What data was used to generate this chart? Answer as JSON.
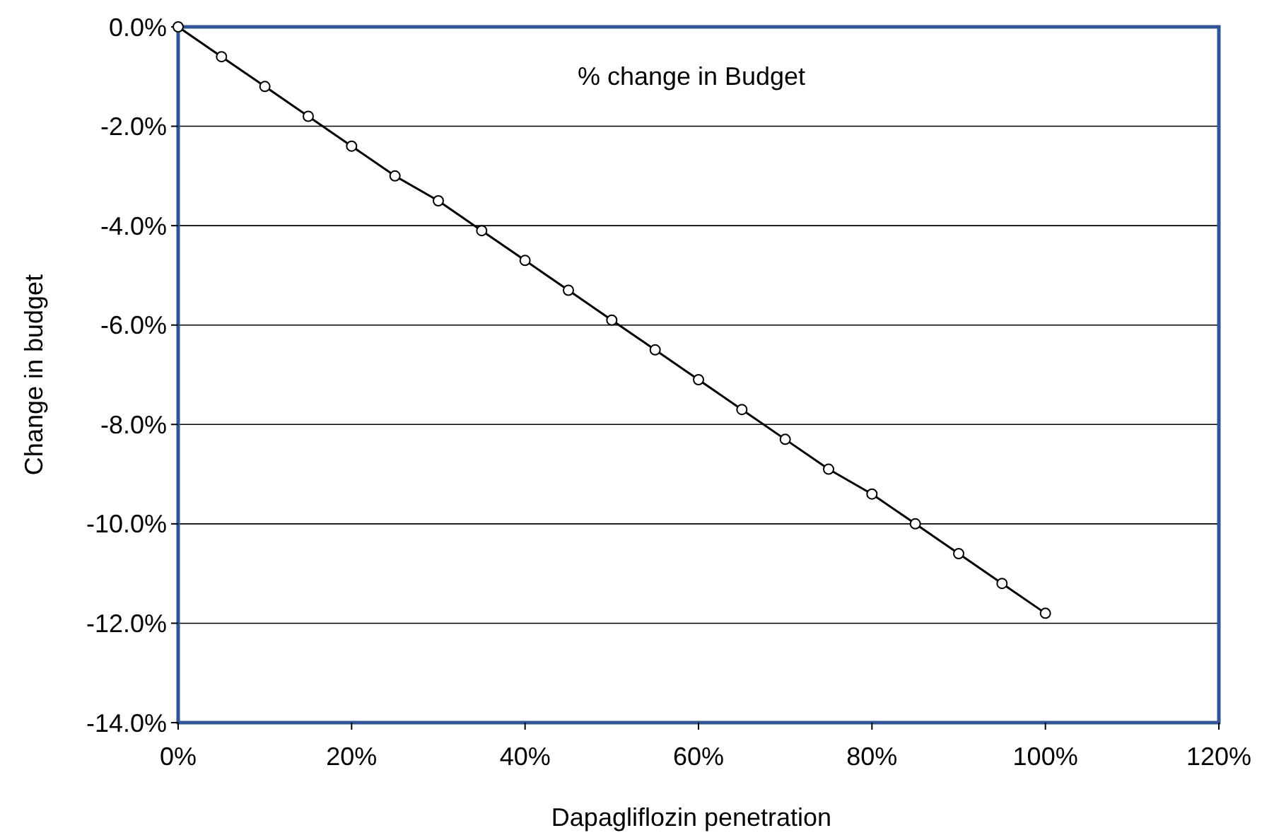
{
  "chart_data": {
    "type": "line",
    "title": "% change in Budget",
    "xlabel": "Dapagliflozin penetration",
    "ylabel": "Change in budget",
    "x": [
      0,
      5,
      10,
      15,
      20,
      25,
      30,
      35,
      40,
      45,
      50,
      55,
      60,
      65,
      70,
      75,
      80,
      85,
      90,
      95,
      100
    ],
    "series": [
      {
        "color": "#000000",
        "values": [
          0,
          -0.6,
          -1.2,
          -1.8,
          -2.4,
          -3.0,
          -3.5,
          -4.1,
          -4.7,
          -5.3,
          -5.9,
          -6.5,
          -7.1,
          -7.7,
          -8.3,
          -8.9,
          -9.4,
          -10.0,
          -10.6,
          -11.2,
          -11.8
        ]
      }
    ],
    "xlim": [
      0,
      120
    ],
    "xticks": [
      {
        "value": 0,
        "label": "0%"
      },
      {
        "value": 20,
        "label": "20%"
      },
      {
        "value": 40,
        "label": "40%"
      },
      {
        "value": 60,
        "label": "60%"
      },
      {
        "value": 80,
        "label": "80%"
      },
      {
        "value": 100,
        "label": "100%"
      },
      {
        "value": 120,
        "label": "120%"
      }
    ],
    "ylim": [
      -14,
      0
    ],
    "yticks": [
      {
        "value": 0,
        "label": "0.0%"
      },
      {
        "value": -2,
        "label": "-2.0%"
      },
      {
        "value": -4,
        "label": "-4.0%"
      },
      {
        "value": -6,
        "label": "-6.0%"
      },
      {
        "value": -8,
        "label": "-8.0%"
      },
      {
        "value": -10,
        "label": "-10.0%"
      },
      {
        "value": -12,
        "label": "-12.0%"
      },
      {
        "value": -14,
        "label": "-14.0%"
      }
    ],
    "grid": "y",
    "marker": "circle",
    "line_style": "solid"
  }
}
